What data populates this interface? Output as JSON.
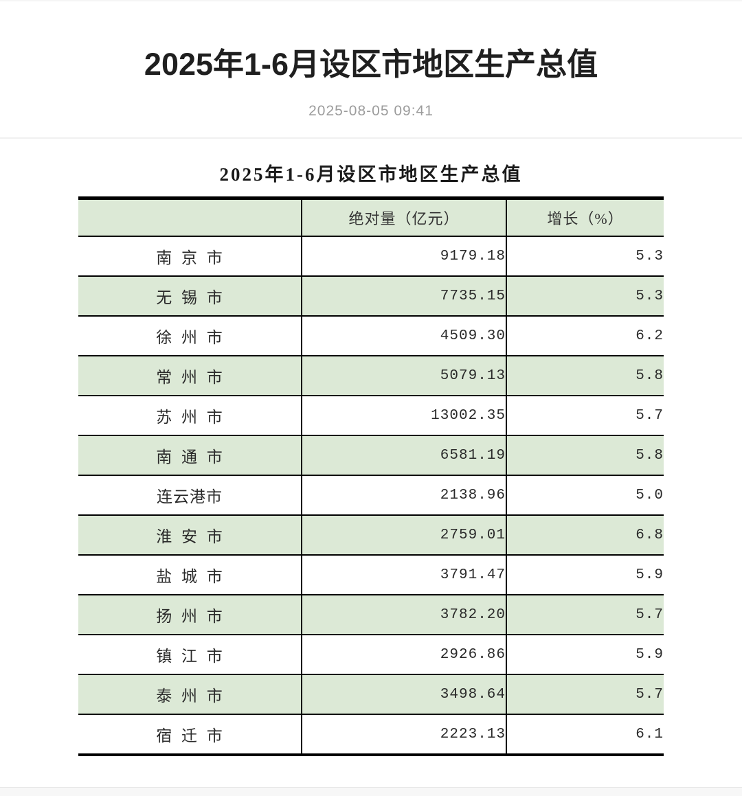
{
  "page": {
    "title": "2025年1-6月设区市地区生产总值",
    "date": "2025-08-05 09:41"
  },
  "table": {
    "title": "2025年1-6月设区市地区生产总值",
    "headers": [
      "",
      "绝对量（亿元）",
      "增长（%）"
    ],
    "rows": [
      {
        "city": "南 京 市",
        "value": "9179.18",
        "growth": "5.3"
      },
      {
        "city": "无 锡 市",
        "value": "7735.15",
        "growth": "5.3"
      },
      {
        "city": "徐 州 市",
        "value": "4509.30",
        "growth": "6.2"
      },
      {
        "city": "常 州 市",
        "value": "5079.13",
        "growth": "5.8"
      },
      {
        "city": "苏 州 市",
        "value": "13002.35",
        "growth": "5.7"
      },
      {
        "city": "南 通 市",
        "value": "6581.19",
        "growth": "5.8"
      },
      {
        "city": "连云港市",
        "value": "2138.96",
        "growth": "5.0"
      },
      {
        "city": "淮 安 市",
        "value": "2759.01",
        "growth": "6.8"
      },
      {
        "city": "盐 城 市",
        "value": "3791.47",
        "growth": "5.9"
      },
      {
        "city": "扬 州 市",
        "value": "3782.20",
        "growth": "5.7"
      },
      {
        "city": "镇 江 市",
        "value": "2926.86",
        "growth": "5.9"
      },
      {
        "city": "泰 州 市",
        "value": "3498.64",
        "growth": "5.7"
      },
      {
        "city": "宿 迁 市",
        "value": "2223.13",
        "growth": "6.1"
      }
    ]
  },
  "colors": {
    "row_green": "#dce9d6",
    "table_border": "#000000",
    "title_text": "#1f1f1f",
    "date_text": "#9c9c9c"
  }
}
